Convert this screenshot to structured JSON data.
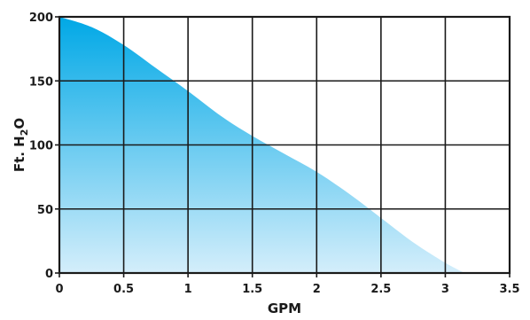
{
  "chart_data": {
    "type": "area",
    "title": "",
    "xlabel": "GPM",
    "ylabel": {
      "prefix": "Ft. H",
      "subscript": "2",
      "suffix": "O"
    },
    "xlim": [
      0,
      3.5
    ],
    "ylim": [
      0,
      200
    ],
    "x_ticks": [
      0,
      0.5,
      1,
      1.5,
      2,
      2.5,
      3,
      3.5
    ],
    "x_tick_labels": [
      "0",
      "0.5",
      "1",
      "1.5",
      "2",
      "2.5",
      "3",
      "3.5"
    ],
    "y_ticks": [
      0,
      50,
      100,
      150,
      200
    ],
    "y_tick_labels": [
      "0",
      "50",
      "100",
      "150",
      "200"
    ],
    "grid": true,
    "legend": "none",
    "series": [
      {
        "x": [
          0,
          0.25,
          0.5,
          0.75,
          1.0,
          1.25,
          1.5,
          1.75,
          2.0,
          2.25,
          2.5,
          2.75,
          3.0,
          3.15
        ],
        "y": [
          200,
          192,
          178,
          160,
          142,
          123,
          107,
          93,
          79,
          62,
          43,
          24,
          8,
          0
        ]
      }
    ],
    "colors": {
      "fill_top": "#00a8e6",
      "fill_bottom": "#d4eefb",
      "grid": "#1a1a1a",
      "text": "#1a1a1a"
    }
  }
}
